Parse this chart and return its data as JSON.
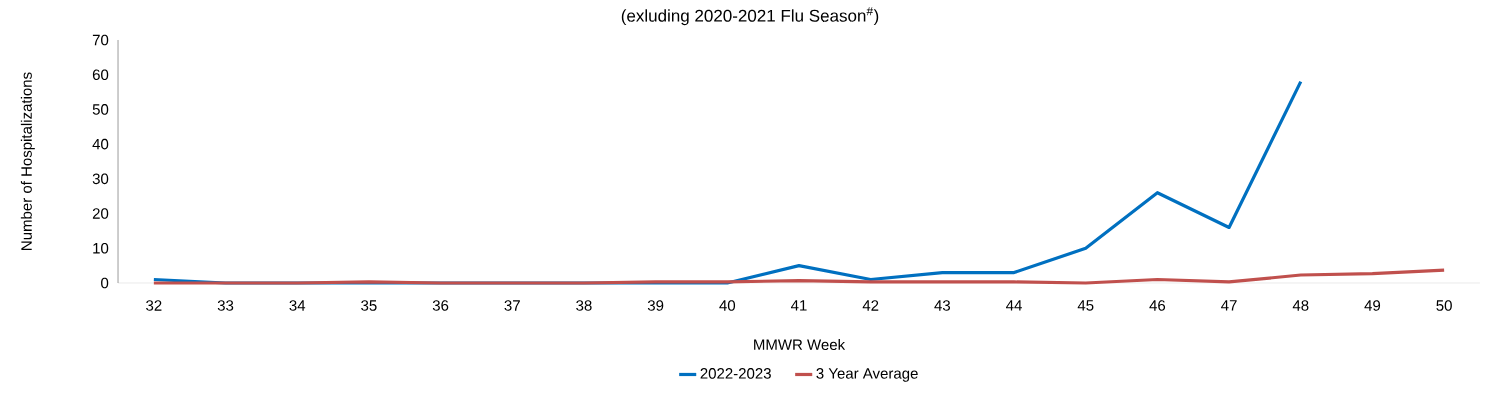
{
  "chart_data": {
    "type": "line",
    "title": "(exluding 2020-2021 Flu Season$^{#}$)",
    "xlabel": "MMWR Week",
    "ylabel": "Number of Hospitalizations",
    "categories": [
      "32",
      "33",
      "34",
      "35",
      "36",
      "37",
      "38",
      "39",
      "40",
      "41",
      "42",
      "43",
      "44",
      "45",
      "46",
      "47",
      "48",
      "49",
      "50"
    ],
    "series": [
      {
        "name": "2022-2023",
        "color": "#0070c0",
        "values": [
          1,
          0,
          0,
          0,
          0,
          0,
          0,
          0,
          0,
          5,
          1,
          3,
          3,
          10,
          26,
          16,
          58,
          null,
          null
        ]
      },
      {
        "name": "3 Year Average",
        "color": "#c0504d",
        "values": [
          0,
          0,
          0,
          0.3,
          0,
          0,
          0,
          0.3,
          0.3,
          0.7,
          0.3,
          0.3,
          0.3,
          0,
          1,
          0.3,
          2.3,
          2.7,
          3.7
        ]
      }
    ],
    "ylim": [
      0,
      70
    ],
    "yticks": [
      0,
      10,
      20,
      30,
      40,
      50,
      60,
      70
    ],
    "legend": "bottom"
  }
}
